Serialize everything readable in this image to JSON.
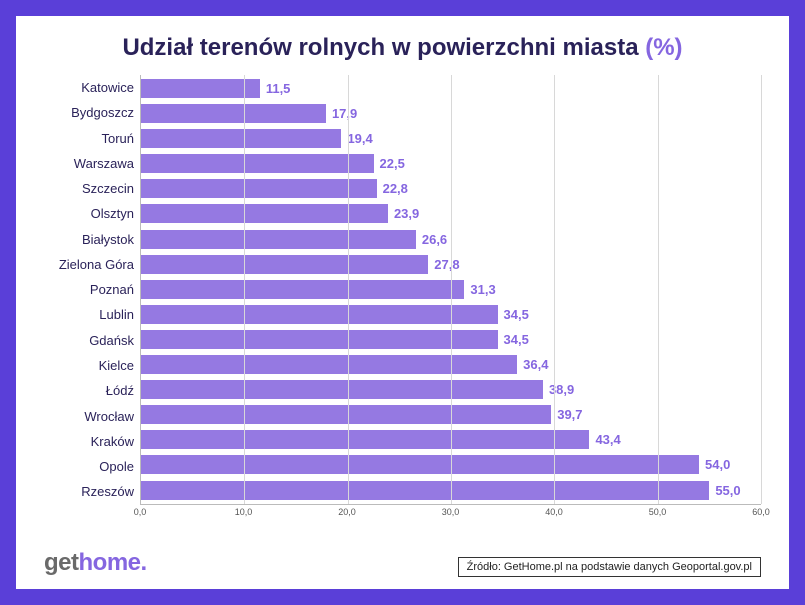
{
  "chart": {
    "type": "bar-horizontal",
    "title_main": "Udział terenów rolnych w powierzchni miasta ",
    "title_pct": "(%)",
    "title_fontsize": 24,
    "title_color": "#2a2259",
    "title_pct_color": "#8566e0",
    "categories": [
      "Katowice",
      "Bydgoszcz",
      "Toruń",
      "Warszawa",
      "Szczecin",
      "Olsztyn",
      "Białystok",
      "Zielona Góra",
      "Poznań",
      "Lublin",
      "Gdańsk",
      "Kielce",
      "Łódź",
      "Wrocław",
      "Kraków",
      "Opole",
      "Rzeszów"
    ],
    "values": [
      11.5,
      17.9,
      19.4,
      22.5,
      22.8,
      23.9,
      26.6,
      27.8,
      31.3,
      34.5,
      34.5,
      36.4,
      38.9,
      39.7,
      43.4,
      54.0,
      55.0
    ],
    "value_labels": [
      "11,5",
      "17,9",
      "19,4",
      "22,5",
      "22,8",
      "23,9",
      "26,6",
      "27,8",
      "31,3",
      "34,5",
      "34,5",
      "36,4",
      "38,9",
      "39,7",
      "43,4",
      "54,0",
      "55,0"
    ],
    "bar_color": "#9579e2",
    "value_label_color": "#8566e0",
    "value_label_fontsize": 13,
    "category_label_fontsize": 13,
    "category_label_color": "#2a2259",
    "xlim": [
      0,
      60
    ],
    "xtick_step": 10,
    "xtick_labels": [
      "0,0",
      "10,0",
      "20,0",
      "30,0",
      "40,0",
      "50,0",
      "60,0"
    ],
    "xtick_fontsize": 9,
    "grid_color": "#d8d8d8",
    "axis_color": "#bbbbbb",
    "background_color": "#ffffff",
    "outer_frame_color": "#5a3fd8"
  },
  "logo": {
    "prefix": "get",
    "accent": "home.",
    "prefix_color": "#6a6a6a",
    "accent_color": "#8566e0",
    "fontsize": 24
  },
  "source": {
    "text": "Źródło: GetHome.pl na podstawie danych Geoportal.gov.pl",
    "fontsize": 11
  }
}
